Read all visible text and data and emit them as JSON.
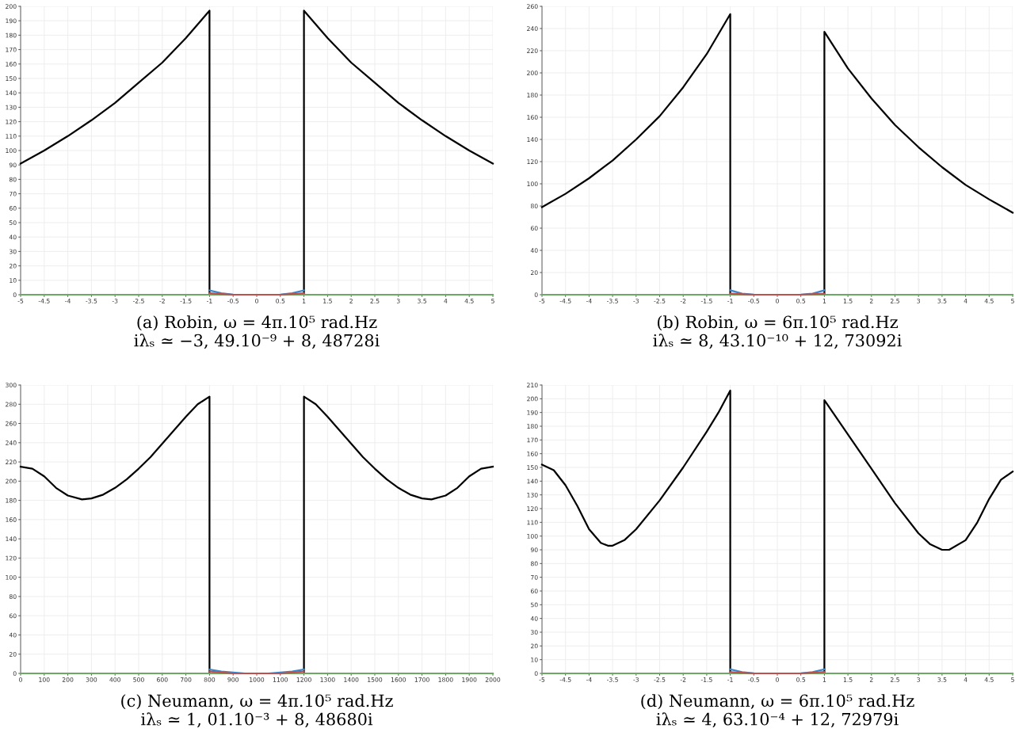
{
  "chart_data": [
    {
      "type": "line",
      "xlabel": "(a) Robin, ω = 4π.10⁵ rad.Hz\niλₛ ≃ −3, 49.10⁻⁹ + 8, 48728i",
      "grid": true,
      "legend": false,
      "marker": "none",
      "line_style": "solid",
      "xlim": [
        -5,
        5
      ],
      "xticks": [
        -5,
        -4.5,
        -4,
        -3.5,
        -3,
        -2.5,
        -2,
        -1.5,
        -1,
        -0.5,
        0,
        0.5,
        1,
        1.5,
        2,
        2.5,
        3,
        3.5,
        4,
        4.5,
        5
      ],
      "ylim": [
        0,
        200
      ],
      "yticks": [
        0,
        10,
        20,
        30,
        40,
        50,
        60,
        70,
        80,
        90,
        100,
        110,
        120,
        130,
        140,
        150,
        160,
        170,
        180,
        190,
        200
      ],
      "series": [
        {
          "color": "#000000",
          "x": [
            -5,
            -4.5,
            -4,
            -3.5,
            -3,
            -2.5,
            -2,
            -1.5,
            -1,
            -1,
            null,
            1,
            1,
            1.5,
            2,
            2.5,
            3,
            3.5,
            4,
            4.5,
            5
          ],
          "values": [
            91,
            100,
            110,
            121,
            133,
            147,
            161,
            178,
            197,
            0,
            null,
            0,
            197,
            178,
            161,
            147,
            133,
            121,
            110,
            100,
            91
          ]
        },
        {
          "color": "#3a86c8",
          "x": [
            -1,
            -0.75,
            -0.5,
            0,
            0.5,
            0.75,
            1
          ],
          "values": [
            3,
            1,
            0.1,
            0,
            0.1,
            1,
            3
          ]
        },
        {
          "color": "#6aaa64",
          "x": [
            -5,
            5
          ],
          "values": [
            0,
            0
          ]
        },
        {
          "color": "#c0504d",
          "x": [
            -1,
            -0.75,
            -0.5,
            0.5,
            0.75,
            1
          ],
          "values": [
            1,
            0.5,
            0,
            0,
            0.5,
            1
          ]
        }
      ]
    },
    {
      "type": "line",
      "xlabel": "(b) Robin, ω = 6π.10⁵ rad.Hz\niλₛ ≃ 8, 43.10⁻¹⁰ + 12, 73092i",
      "grid": true,
      "legend": false,
      "marker": "none",
      "line_style": "solid",
      "xlim": [
        -5,
        5
      ],
      "xticks": [
        -5,
        -4.5,
        -4,
        -3.5,
        -3,
        -2.5,
        -2,
        -1.5,
        -1,
        -0.5,
        0,
        0.5,
        1,
        1.5,
        2,
        2.5,
        3,
        3.5,
        4,
        4.5,
        5
      ],
      "ylim": [
        0,
        260
      ],
      "yticks": [
        0,
        20,
        40,
        60,
        80,
        100,
        120,
        140,
        160,
        180,
        200,
        220,
        240,
        260
      ],
      "series": [
        {
          "color": "#000000",
          "x": [
            -5,
            -4.5,
            -4,
            -3.5,
            -3,
            -2.5,
            -2,
            -1.5,
            -1,
            -1,
            null,
            1,
            1,
            1.5,
            2,
            2.5,
            3,
            3.5,
            4,
            4.5,
            5
          ],
          "values": [
            79,
            91,
            105,
            121,
            140,
            161,
            187,
            217,
            253,
            0,
            null,
            0,
            237,
            204,
            177,
            153,
            133,
            115,
            99,
            86,
            74
          ]
        },
        {
          "color": "#3a86c8",
          "x": [
            -1,
            -0.75,
            -0.5,
            0,
            0.5,
            0.75,
            1
          ],
          "values": [
            4,
            1,
            0.1,
            0,
            0.1,
            1,
            4
          ]
        },
        {
          "color": "#6aaa64",
          "x": [
            -5,
            5
          ],
          "values": [
            0,
            0
          ]
        },
        {
          "color": "#c0504d",
          "x": [
            -1,
            -0.75,
            -0.5,
            0.5,
            0.75,
            1
          ],
          "values": [
            1,
            0.5,
            0,
            0,
            0.5,
            1
          ]
        }
      ]
    },
    {
      "type": "line",
      "xlabel": "(c) Neumann, ω = 4π.10⁵ rad.Hz\niλₛ ≃ 1, 01.10⁻³ + 8, 48680i",
      "grid": true,
      "legend": false,
      "marker": "none",
      "line_style": "solid",
      "xlim": [
        0,
        2000
      ],
      "xticks": [
        0,
        100,
        200,
        300,
        400,
        500,
        600,
        700,
        800,
        900,
        1000,
        1100,
        1200,
        1300,
        1400,
        1500,
        1600,
        1700,
        1800,
        1900,
        2000
      ],
      "ylim": [
        0,
        300
      ],
      "yticks": [
        0,
        20,
        40,
        60,
        80,
        100,
        120,
        140,
        160,
        180,
        200,
        220,
        240,
        260,
        280,
        300
      ],
      "series": [
        {
          "color": "#000000",
          "x": [
            0,
            50,
            100,
            150,
            200,
            260,
            300,
            350,
            400,
            450,
            500,
            550,
            600,
            650,
            700,
            750,
            800,
            800,
            null,
            1200,
            1200,
            1250,
            1300,
            1350,
            1400,
            1450,
            1500,
            1550,
            1600,
            1650,
            1700,
            1740,
            1800,
            1850,
            1900,
            1950,
            2000
          ],
          "values": [
            215,
            213,
            205,
            193,
            185,
            181,
            182,
            186,
            193,
            202,
            213,
            225,
            239,
            253,
            267,
            280,
            288,
            0,
            null,
            0,
            288,
            280,
            267,
            253,
            239,
            225,
            213,
            202,
            193,
            186,
            182,
            181,
            185,
            193,
            205,
            213,
            215
          ]
        },
        {
          "color": "#3a86c8",
          "x": [
            800,
            850,
            900,
            950,
            1050,
            1100,
            1150,
            1200
          ],
          "values": [
            4,
            2,
            1,
            0,
            0,
            1,
            2,
            4
          ]
        },
        {
          "color": "#6aaa64",
          "x": [
            0,
            2000
          ],
          "values": [
            0,
            0
          ]
        },
        {
          "color": "#c0504d",
          "x": [
            800,
            850,
            900,
            1100,
            1150,
            1200
          ],
          "values": [
            2,
            1,
            0,
            0,
            1,
            2
          ]
        }
      ]
    },
    {
      "type": "line",
      "xlabel": "(d) Neumann, ω = 6π.10⁵ rad.Hz\niλₛ ≃ 4, 63.10⁻⁴ + 12, 72979i",
      "grid": true,
      "legend": false,
      "marker": "none",
      "line_style": "solid",
      "xlim": [
        -5,
        5
      ],
      "xticks": [
        -5,
        -4.5,
        -4,
        -3.5,
        -3,
        -2.5,
        -2,
        -1.5,
        -1,
        -0.5,
        0,
        0.5,
        1,
        1.5,
        2,
        2.5,
        3,
        3.5,
        4,
        4.5,
        5
      ],
      "ylim": [
        0,
        210
      ],
      "yticks": [
        0,
        10,
        20,
        30,
        40,
        50,
        60,
        70,
        80,
        90,
        100,
        110,
        120,
        130,
        140,
        150,
        160,
        170,
        180,
        190,
        200,
        210
      ],
      "series": [
        {
          "color": "#000000",
          "x": [
            -5,
            -4.75,
            -4.5,
            -4.25,
            -4,
            -3.75,
            -3.6,
            -3.5,
            -3.25,
            -3,
            -2.5,
            -2,
            -1.5,
            -1.25,
            -1,
            -1,
            null,
            1,
            1,
            1.5,
            2,
            2.5,
            3,
            3.25,
            3.5,
            3.65,
            4,
            4.25,
            4.5,
            4.75,
            5
          ],
          "values": [
            152,
            148,
            137,
            122,
            105,
            95,
            93,
            93,
            97,
            105,
            126,
            150,
            176,
            190,
            206,
            0,
            null,
            0,
            199,
            174,
            149,
            124,
            102,
            94,
            90,
            90,
            97,
            110,
            127,
            141,
            147
          ]
        },
        {
          "color": "#3a86c8",
          "x": [
            -1,
            -0.75,
            -0.5,
            0,
            0.5,
            0.75,
            1
          ],
          "values": [
            3,
            1,
            0.1,
            0,
            0.1,
            1,
            3
          ]
        },
        {
          "color": "#6aaa64",
          "x": [
            -5,
            5
          ],
          "values": [
            0,
            0
          ]
        },
        {
          "color": "#c0504d",
          "x": [
            -1,
            -0.75,
            -0.5,
            0.5,
            0.75,
            1
          ],
          "values": [
            1,
            0.5,
            0,
            0,
            0.5,
            1
          ]
        }
      ]
    }
  ]
}
